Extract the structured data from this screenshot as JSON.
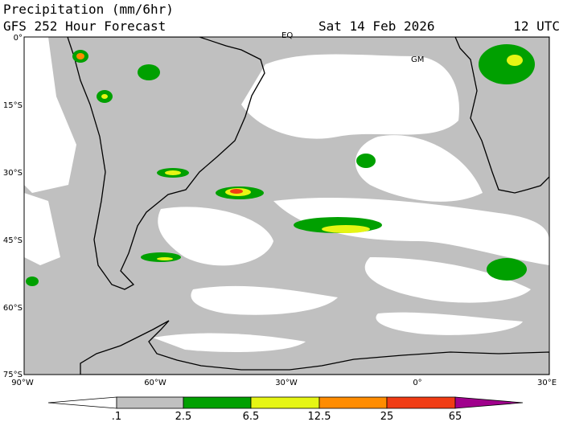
{
  "header": {
    "title": "Precipitation (mm/6hr)",
    "subtitle": "GFS 252 Hour Forecast",
    "date": "Sat 14 Feb 2026",
    "time": "12 UTC"
  },
  "map": {
    "lat_labels": [
      "0°",
      "15°S",
      "30°S",
      "45°S",
      "60°S",
      "75°S"
    ],
    "lon_labels": [
      "90°W",
      "60°W",
      "30°W",
      "0°",
      "30°E"
    ],
    "markers": [
      "EQ",
      "GM"
    ]
  },
  "colorbar": {
    "labels": [
      ".1",
      "2.5",
      "6.5",
      "12.5",
      "25",
      "65"
    ]
  }
}
